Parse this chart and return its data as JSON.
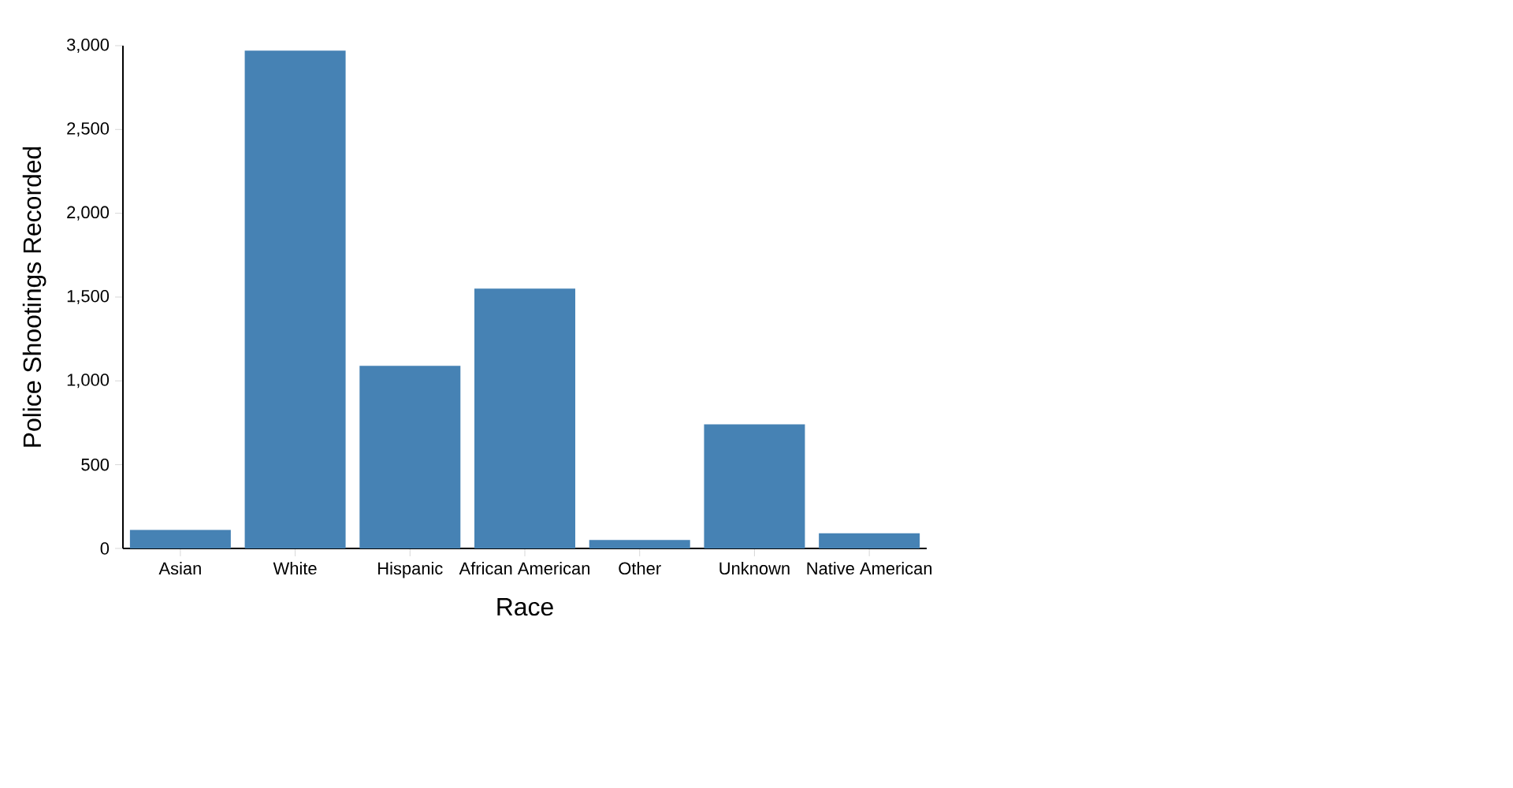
{
  "chart_data": {
    "type": "bar",
    "xlabel": "Race",
    "ylabel": "Police Shootings Recorded",
    "categories": [
      "Asian",
      "White",
      "Hispanic",
      "African American",
      "Other",
      "Unknown",
      "Native American"
    ],
    "values": [
      110,
      2970,
      1090,
      1550,
      50,
      740,
      90
    ],
    "color": "#4682b4",
    "ylim": [
      0,
      3000
    ],
    "yticks": [
      0,
      {
        "value": 500,
        "label": "500"
      },
      {
        "value": 1000,
        "label": "1,000"
      },
      {
        "value": 1500,
        "label": "1,500"
      },
      {
        "value": 2000,
        "label": "2,000"
      },
      {
        "value": 2500,
        "label": "2,500"
      },
      {
        "value": 3000,
        "label": "3,000"
      }
    ],
    "grid": false
  }
}
